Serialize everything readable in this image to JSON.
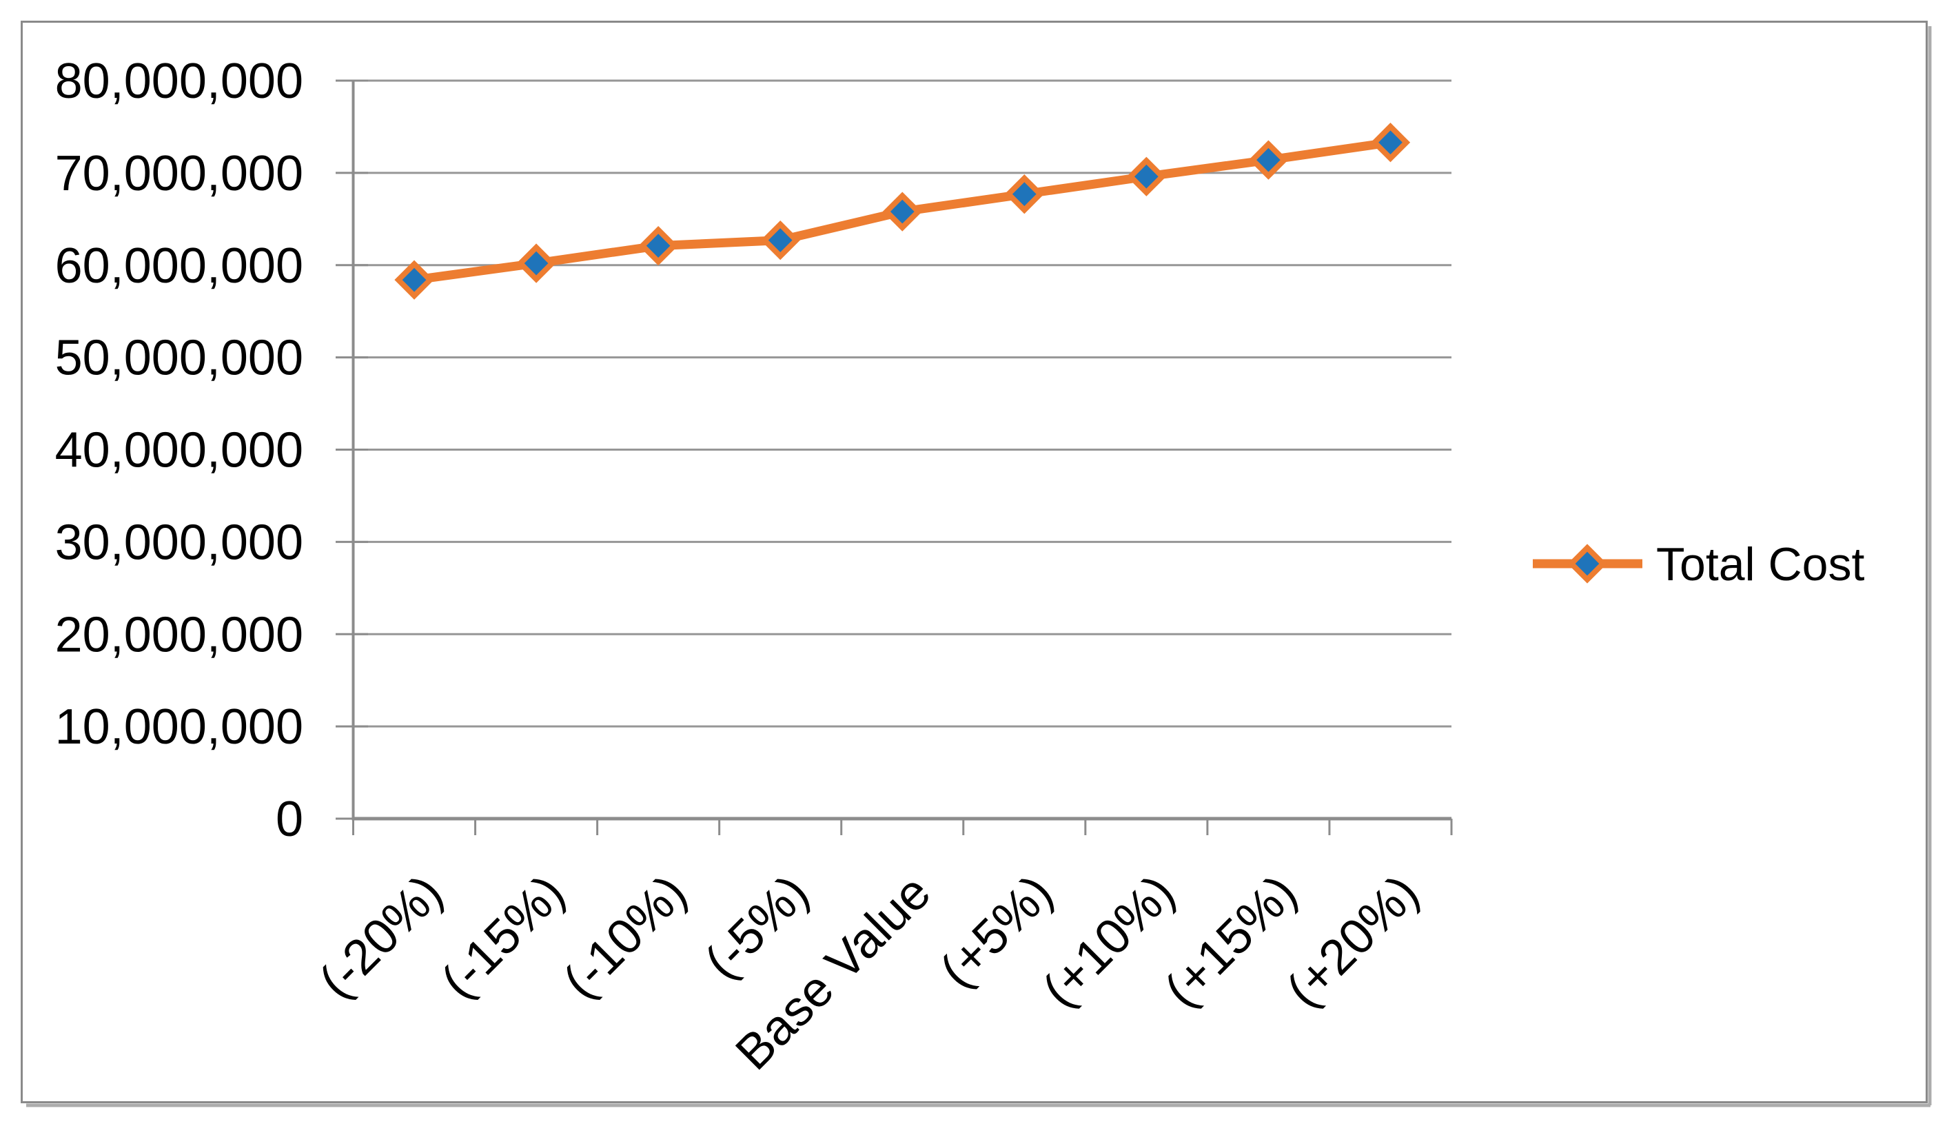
{
  "chart_data": {
    "type": "line",
    "categories": [
      "(-20%)",
      "(-15%)",
      "(-10%)",
      "(-5%)",
      "Base Value",
      "(+5%)",
      "(+10%)",
      "(+15%)",
      "(+20%)"
    ],
    "series": [
      {
        "name": "Total Cost",
        "values": [
          58400000,
          60200000,
          62100000,
          62700000,
          65800000,
          67700000,
          69600000,
          71400000,
          73300000
        ]
      }
    ],
    "ylim": [
      0,
      80000000
    ],
    "y_tick_interval": 10000000,
    "y_tick_labels": [
      "0",
      "10,000,000",
      "20,000,000",
      "30,000,000",
      "40,000,000",
      "50,000,000",
      "60,000,000",
      "70,000,000",
      "80,000,000"
    ],
    "grid": true,
    "legend_position": "right-middle",
    "x_label_rotation_deg": 45
  },
  "legend": {
    "label": "Total Cost"
  },
  "colors": {
    "line": "#ED7D31",
    "marker_fill": "#1F74BA",
    "marker_border": "#ED7D31",
    "gridline": "#969696",
    "axis": "#8C8C8C",
    "frame_border": "#8A8A8A",
    "frame_shadow": "#ACACAC",
    "text": "#000000",
    "background": "#FFFFFF"
  }
}
